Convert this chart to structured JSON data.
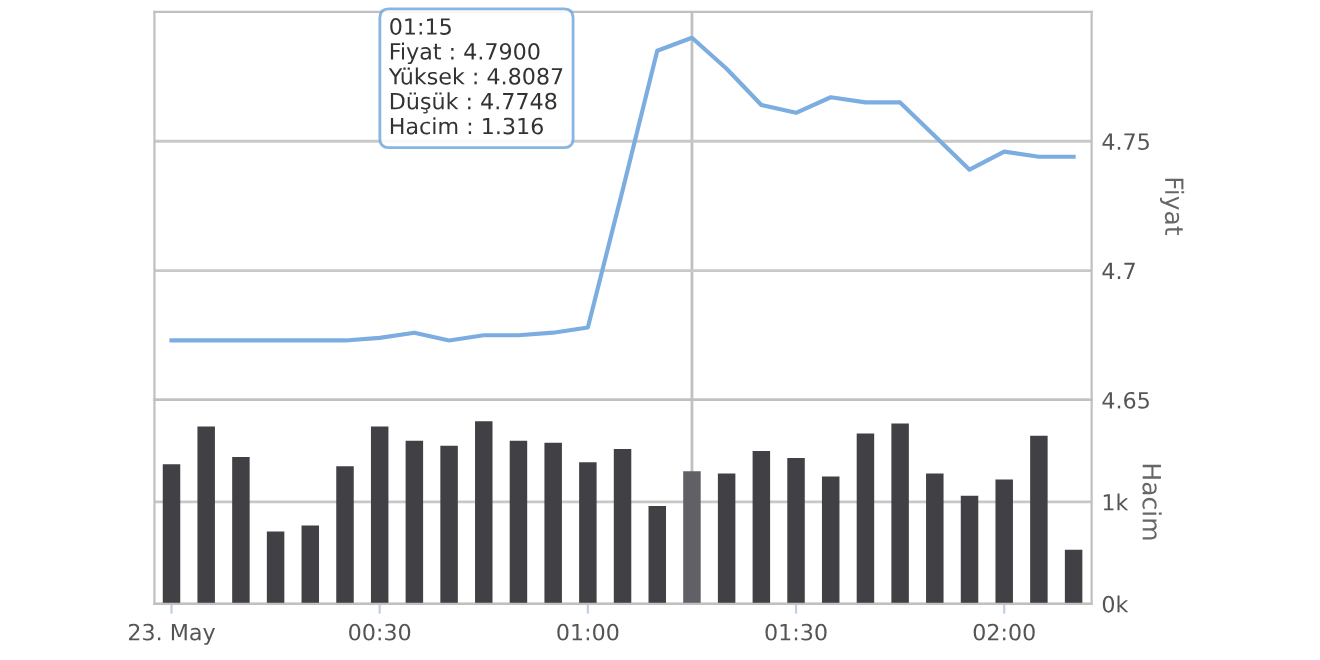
{
  "chart_data": [
    {
      "type": "line",
      "ylabel": "Fiyat",
      "x": [
        0,
        0.0833,
        0.1667,
        0.25,
        0.3333,
        0.4167,
        0.5,
        0.5833,
        0.6667,
        0.75,
        0.8333,
        0.9167,
        1,
        1.0833,
        1.1667,
        1.25,
        1.3333,
        1.4167,
        1.5,
        1.5833,
        1.6667,
        1.75,
        1.8333,
        1.9167,
        2,
        2.0833,
        2.1667
      ],
      "series": [
        {
          "color": "#7cade0",
          "values": [
            4.673,
            4.673,
            4.673,
            4.673,
            4.673,
            4.673,
            4.674,
            4.676,
            4.673,
            4.675,
            4.675,
            4.676,
            4.678,
            4.731,
            4.785,
            4.79,
            4.778,
            4.764,
            4.761,
            4.767,
            4.765,
            4.765,
            4.752,
            4.739,
            4.746,
            4.744,
            4.744
          ]
        }
      ],
      "xlim": [
        -0.041,
        2.21
      ],
      "ylim": [
        4.65,
        4.8
      ],
      "yticks": [
        4.65,
        4.7,
        4.75
      ],
      "tick_labels": "y",
      "grid": "y",
      "marker": "none",
      "line_style": "solid",
      "ref_lines": [
        {
          "axis": "x",
          "value": 1.25,
          "label": null,
          "color": "#c0c0c0"
        }
      ],
      "annotations": [
        "01:15\nFiyat : 4.7900\nYüksek : 4.8087\nDüşük : 4.7748\nHacim : 1.316"
      ]
    },
    {
      "type": "bar",
      "ylabel": "Hacim",
      "x": [
        0,
        0.0833,
        0.1667,
        0.25,
        0.3333,
        0.4167,
        0.5,
        0.5833,
        0.6667,
        0.75,
        0.8333,
        0.9167,
        1,
        1.0833,
        1.1667,
        1.25,
        1.3333,
        1.4167,
        1.5,
        1.5833,
        1.6667,
        1.75,
        1.8333,
        1.9167,
        2,
        2.0833,
        2.1667
      ],
      "values": [
        1.37,
        1.74,
        1.44,
        0.71,
        0.77,
        1.35,
        1.74,
        1.6,
        1.55,
        1.79,
        1.6,
        1.58,
        1.39,
        1.52,
        0.96,
        1.3,
        1.28,
        1.5,
        1.43,
        1.25,
        1.67,
        1.77,
        1.28,
        1.06,
        1.22,
        1.65,
        0.53
      ],
      "colors": [
        "#404045",
        "#404045",
        "#404045",
        "#404045",
        "#404045",
        "#404045",
        "#404045",
        "#404045",
        "#404045",
        "#404045",
        "#404045",
        "#404045",
        "#404045",
        "#404045",
        "#404045",
        "#606066",
        "#404045",
        "#404045",
        "#404045",
        "#404045",
        "#404045",
        "#404045",
        "#404045",
        "#404045",
        "#404045",
        "#404045",
        "#404045"
      ],
      "xlim": [
        -0.041,
        2.21
      ],
      "ylim": [
        0,
        2
      ],
      "yticks": [
        {
          "value": 0,
          "label": "0k"
        },
        {
          "value": 1,
          "label": "1k"
        }
      ],
      "xticks": [
        {
          "value": 0,
          "label": "23. May"
        },
        {
          "value": 0.5,
          "label": "00:30"
        },
        {
          "value": 1,
          "label": "01:00"
        },
        {
          "value": 1.5,
          "label": "01:30"
        },
        {
          "value": 2,
          "label": "02:00"
        }
      ],
      "grid": "y",
      "ref_lines": [
        {
          "axis": "x",
          "value": 1.25,
          "label": null,
          "color": "#c0c0c0"
        }
      ]
    }
  ]
}
